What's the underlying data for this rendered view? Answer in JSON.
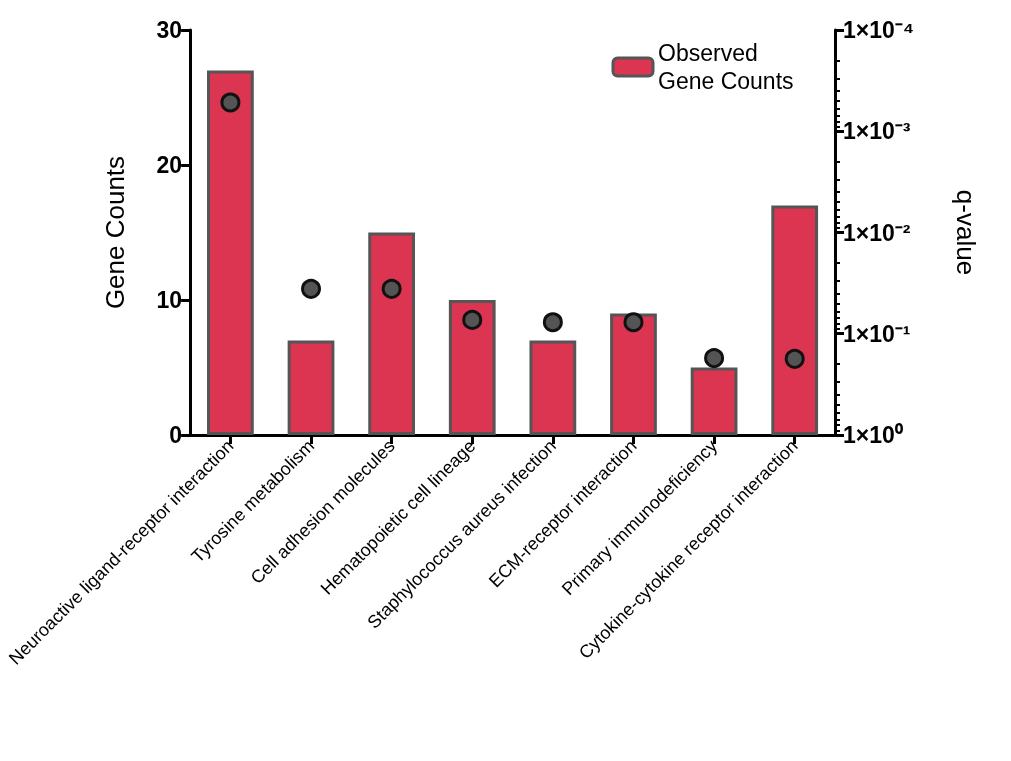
{
  "chart_data": {
    "type": "bar",
    "categories": [
      "Neuroactive ligand-receptor interaction",
      "Tyrosine metabolism",
      "Cell adhesion molecules",
      "Hematopoietic cell lineage",
      "Staphylococcus aureus infection",
      "ECM-receptor interaction",
      "Primary immunodeficiency",
      "Cytokine-cytokine receptor interaction"
    ],
    "series": [
      {
        "name": "Observed Gene Counts",
        "color": "#dc3552",
        "values": [
          27,
          7,
          15,
          10,
          7,
          9,
          5,
          17
        ]
      },
      {
        "type": "scatter",
        "axis": "y2",
        "color": "#545454",
        "x": [
          "Neuroactive ligand-receptor interaction",
          "Tyrosine metabolism",
          "Cell adhesion molecules",
          "Hematopoietic cell lineage",
          "Staphylococcus aureus infection",
          "ECM-receptor interaction",
          "Primary immunodeficiency",
          "Cytokine-cytokine receptor interaction"
        ],
        "values": [
          0.00052,
          0.036,
          0.036,
          0.073,
          0.077,
          0.077,
          0.174,
          0.177
        ]
      }
    ],
    "ylabel": "Gene Counts",
    "y2label": "q-value",
    "ylim": [
      0,
      30
    ],
    "yticks": [
      0,
      10,
      20,
      30
    ],
    "y2lim": [
      1,
      0.0001
    ],
    "y2ticks": [
      {
        "value": 1,
        "label": "1×10⁰"
      },
      {
        "value": 0.1,
        "label": "1×10⁻¹"
      },
      {
        "value": 0.01,
        "label": "1×10⁻²"
      },
      {
        "value": 0.001,
        "label": "1×10⁻³"
      },
      {
        "value": 0.0001,
        "label": "1×10⁻⁴"
      }
    ],
    "log": "y2",
    "legend": "top right",
    "marker": "circle"
  }
}
